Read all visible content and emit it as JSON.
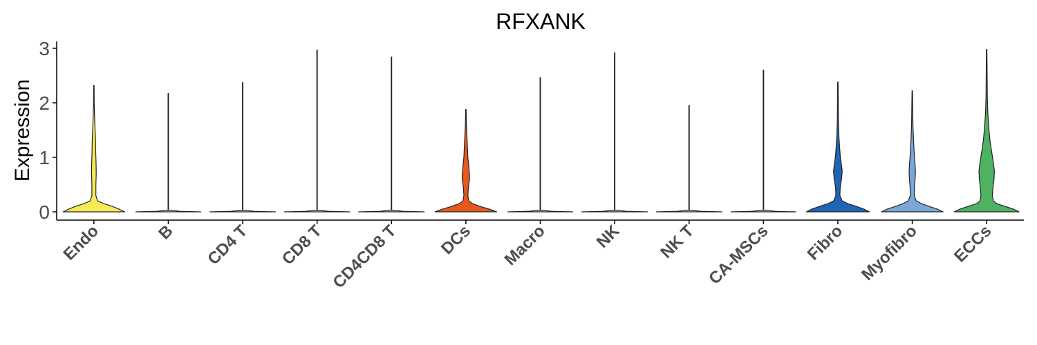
{
  "chart_data": {
    "type": "violin",
    "title": "RFXANK",
    "xlabel": "",
    "ylabel": "Expression",
    "ylim": [
      0,
      3
    ],
    "yticks": [
      "0",
      "1",
      "2",
      "3"
    ],
    "grid": false,
    "legend": "none",
    "categories": [
      "Endo",
      "B",
      "CD4 T",
      "CD8 T",
      "CD4CD8 T",
      "DCs",
      "Macro",
      "NK",
      "NK T",
      "CA-MSCs",
      "Fibro",
      "Myofibro",
      "ECCs"
    ],
    "series": [
      {
        "category": "Endo",
        "color": "#f7ea56",
        "max": 2.32,
        "profile": [
          [
            0,
            0.92
          ],
          [
            0.05,
            0.75
          ],
          [
            0.1,
            0.55
          ],
          [
            0.15,
            0.3
          ],
          [
            0.2,
            0.11
          ],
          [
            0.3,
            0.06
          ],
          [
            0.5,
            0.06
          ],
          [
            0.7,
            0.07
          ],
          [
            0.9,
            0.065
          ],
          [
            1.1,
            0.055
          ],
          [
            1.3,
            0.05
          ],
          [
            1.5,
            0.035
          ],
          [
            1.8,
            0.018
          ],
          [
            2.0,
            0.01
          ],
          [
            2.32,
            0.004
          ]
        ]
      },
      {
        "category": "B",
        "color": "#cccccc",
        "max": 2.17,
        "profile": [
          [
            0,
            0.97
          ],
          [
            0.01,
            0.35
          ],
          [
            0.03,
            0.005
          ],
          [
            2.17,
            0.004
          ]
        ]
      },
      {
        "category": "CD4 T",
        "color": "#cccccc",
        "max": 2.37,
        "profile": [
          [
            0,
            0.98
          ],
          [
            0.01,
            0.35
          ],
          [
            0.03,
            0.005
          ],
          [
            2.37,
            0.004
          ]
        ]
      },
      {
        "category": "CD8 T",
        "color": "#cccccc",
        "max": 2.97,
        "profile": [
          [
            0,
            0.98
          ],
          [
            0.01,
            0.35
          ],
          [
            0.03,
            0.005
          ],
          [
            2.97,
            0.004
          ]
        ]
      },
      {
        "category": "CD4CD8 T",
        "color": "#cccccc",
        "max": 2.84,
        "profile": [
          [
            0,
            0.98
          ],
          [
            0.01,
            0.35
          ],
          [
            0.03,
            0.005
          ],
          [
            2.84,
            0.004
          ]
        ]
      },
      {
        "category": "DCs",
        "color": "#e55a1c",
        "max": 1.88,
        "profile": [
          [
            0,
            0.92
          ],
          [
            0.05,
            0.7
          ],
          [
            0.1,
            0.42
          ],
          [
            0.15,
            0.2
          ],
          [
            0.2,
            0.09
          ],
          [
            0.3,
            0.06
          ],
          [
            0.45,
            0.075
          ],
          [
            0.6,
            0.11
          ],
          [
            0.7,
            0.105
          ],
          [
            0.85,
            0.085
          ],
          [
            1.0,
            0.06
          ],
          [
            1.2,
            0.045
          ],
          [
            1.4,
            0.03
          ],
          [
            1.6,
            0.015
          ],
          [
            1.88,
            0.004
          ]
        ]
      },
      {
        "category": "Macro",
        "color": "#cccccc",
        "max": 2.46,
        "profile": [
          [
            0,
            0.97
          ],
          [
            0.01,
            0.35
          ],
          [
            0.03,
            0.005
          ],
          [
            2.46,
            0.004
          ]
        ]
      },
      {
        "category": "NK",
        "color": "#cccccc",
        "max": 2.92,
        "profile": [
          [
            0,
            0.98
          ],
          [
            0.01,
            0.35
          ],
          [
            0.03,
            0.005
          ],
          [
            2.92,
            0.004
          ]
        ]
      },
      {
        "category": "NK T",
        "color": "#cccccc",
        "max": 1.95,
        "profile": [
          [
            0,
            0.98
          ],
          [
            0.01,
            0.35
          ],
          [
            0.03,
            0.005
          ],
          [
            1.95,
            0.004
          ]
        ]
      },
      {
        "category": "CA-MSCs",
        "color": "#cccccc",
        "max": 2.6,
        "profile": [
          [
            0,
            0.97
          ],
          [
            0.01,
            0.35
          ],
          [
            0.03,
            0.005
          ],
          [
            2.6,
            0.004
          ]
        ]
      },
      {
        "category": "Fibro",
        "color": "#1f65b6",
        "max": 2.38,
        "profile": [
          [
            0,
            0.94
          ],
          [
            0.05,
            0.78
          ],
          [
            0.1,
            0.55
          ],
          [
            0.15,
            0.3
          ],
          [
            0.2,
            0.13
          ],
          [
            0.3,
            0.06
          ],
          [
            0.45,
            0.07
          ],
          [
            0.6,
            0.11
          ],
          [
            0.75,
            0.13
          ],
          [
            0.9,
            0.1
          ],
          [
            1.0,
            0.075
          ],
          [
            1.2,
            0.05
          ],
          [
            1.4,
            0.03
          ],
          [
            1.7,
            0.015
          ],
          [
            2.38,
            0.004
          ]
        ]
      },
      {
        "category": "Myofibro",
        "color": "#7aa7d8",
        "max": 2.22,
        "profile": [
          [
            0,
            0.92
          ],
          [
            0.05,
            0.75
          ],
          [
            0.1,
            0.5
          ],
          [
            0.15,
            0.28
          ],
          [
            0.2,
            0.12
          ],
          [
            0.3,
            0.06
          ],
          [
            0.45,
            0.065
          ],
          [
            0.6,
            0.085
          ],
          [
            0.75,
            0.095
          ],
          [
            0.9,
            0.08
          ],
          [
            1.1,
            0.055
          ],
          [
            1.3,
            0.04
          ],
          [
            1.6,
            0.02
          ],
          [
            2.22,
            0.004
          ]
        ]
      },
      {
        "category": "ECCs",
        "color": "#4fb263",
        "max": 2.98,
        "profile": [
          [
            0,
            0.97
          ],
          [
            0.05,
            0.8
          ],
          [
            0.1,
            0.55
          ],
          [
            0.15,
            0.3
          ],
          [
            0.2,
            0.2
          ],
          [
            0.3,
            0.17
          ],
          [
            0.45,
            0.19
          ],
          [
            0.6,
            0.22
          ],
          [
            0.75,
            0.23
          ],
          [
            0.9,
            0.2
          ],
          [
            1.1,
            0.15
          ],
          [
            1.3,
            0.1
          ],
          [
            1.5,
            0.07
          ],
          [
            1.8,
            0.035
          ],
          [
            2.1,
            0.02
          ],
          [
            2.98,
            0.004
          ]
        ]
      }
    ]
  }
}
